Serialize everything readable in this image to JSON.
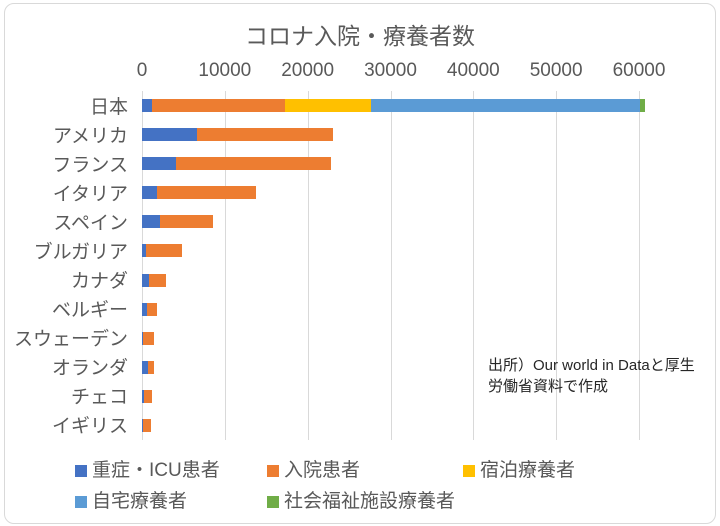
{
  "chart": {
    "title": "コロナ入院・療養者数",
    "source_note_line1": "出所）Our world in Dataと厚生",
    "source_note_line2": "労働省資料で作成"
  },
  "chart_data": {
    "type": "bar",
    "orientation": "horizontal",
    "stacked": true,
    "title": "コロナ入院・療養者数",
    "categories": [
      "日本",
      "アメリカ",
      "フランス",
      "イタリア",
      "スペイン",
      "ブルガリア",
      "カナダ",
      "ベルギー",
      "スウェーデン",
      "オランダ",
      "チェコ",
      "イギリス"
    ],
    "series": [
      {
        "name": "重症・ICU患者",
        "color": "#4472c4",
        "values": [
          1200,
          6600,
          4100,
          1800,
          2200,
          500,
          900,
          600,
          150,
          700,
          250,
          150
        ]
      },
      {
        "name": "入院患者",
        "color": "#ed7d31",
        "values": [
          16100,
          16500,
          18700,
          12000,
          6400,
          4300,
          2000,
          1250,
          1300,
          800,
          1000,
          900
        ]
      },
      {
        "name": "宿泊療養者",
        "color": "#ffc000",
        "values": [
          10300,
          0,
          0,
          0,
          0,
          0,
          0,
          0,
          0,
          0,
          0,
          0
        ]
      },
      {
        "name": "自宅療養者",
        "color": "#5b9bd5",
        "values": [
          32500,
          0,
          0,
          0,
          0,
          0,
          0,
          0,
          0,
          0,
          0,
          0
        ]
      },
      {
        "name": "社会福祉施設療養者",
        "color": "#70ad47",
        "values": [
          600,
          0,
          0,
          0,
          0,
          0,
          0,
          0,
          0,
          0,
          0,
          0
        ]
      }
    ],
    "xlim": [
      0,
      60000
    ],
    "x_ticks": [
      0,
      10000,
      20000,
      30000,
      40000,
      50000,
      60000
    ],
    "grid": true,
    "legend_position": "bottom",
    "annotation": "出所）Our world in Dataと厚生労働省資料で作成"
  }
}
